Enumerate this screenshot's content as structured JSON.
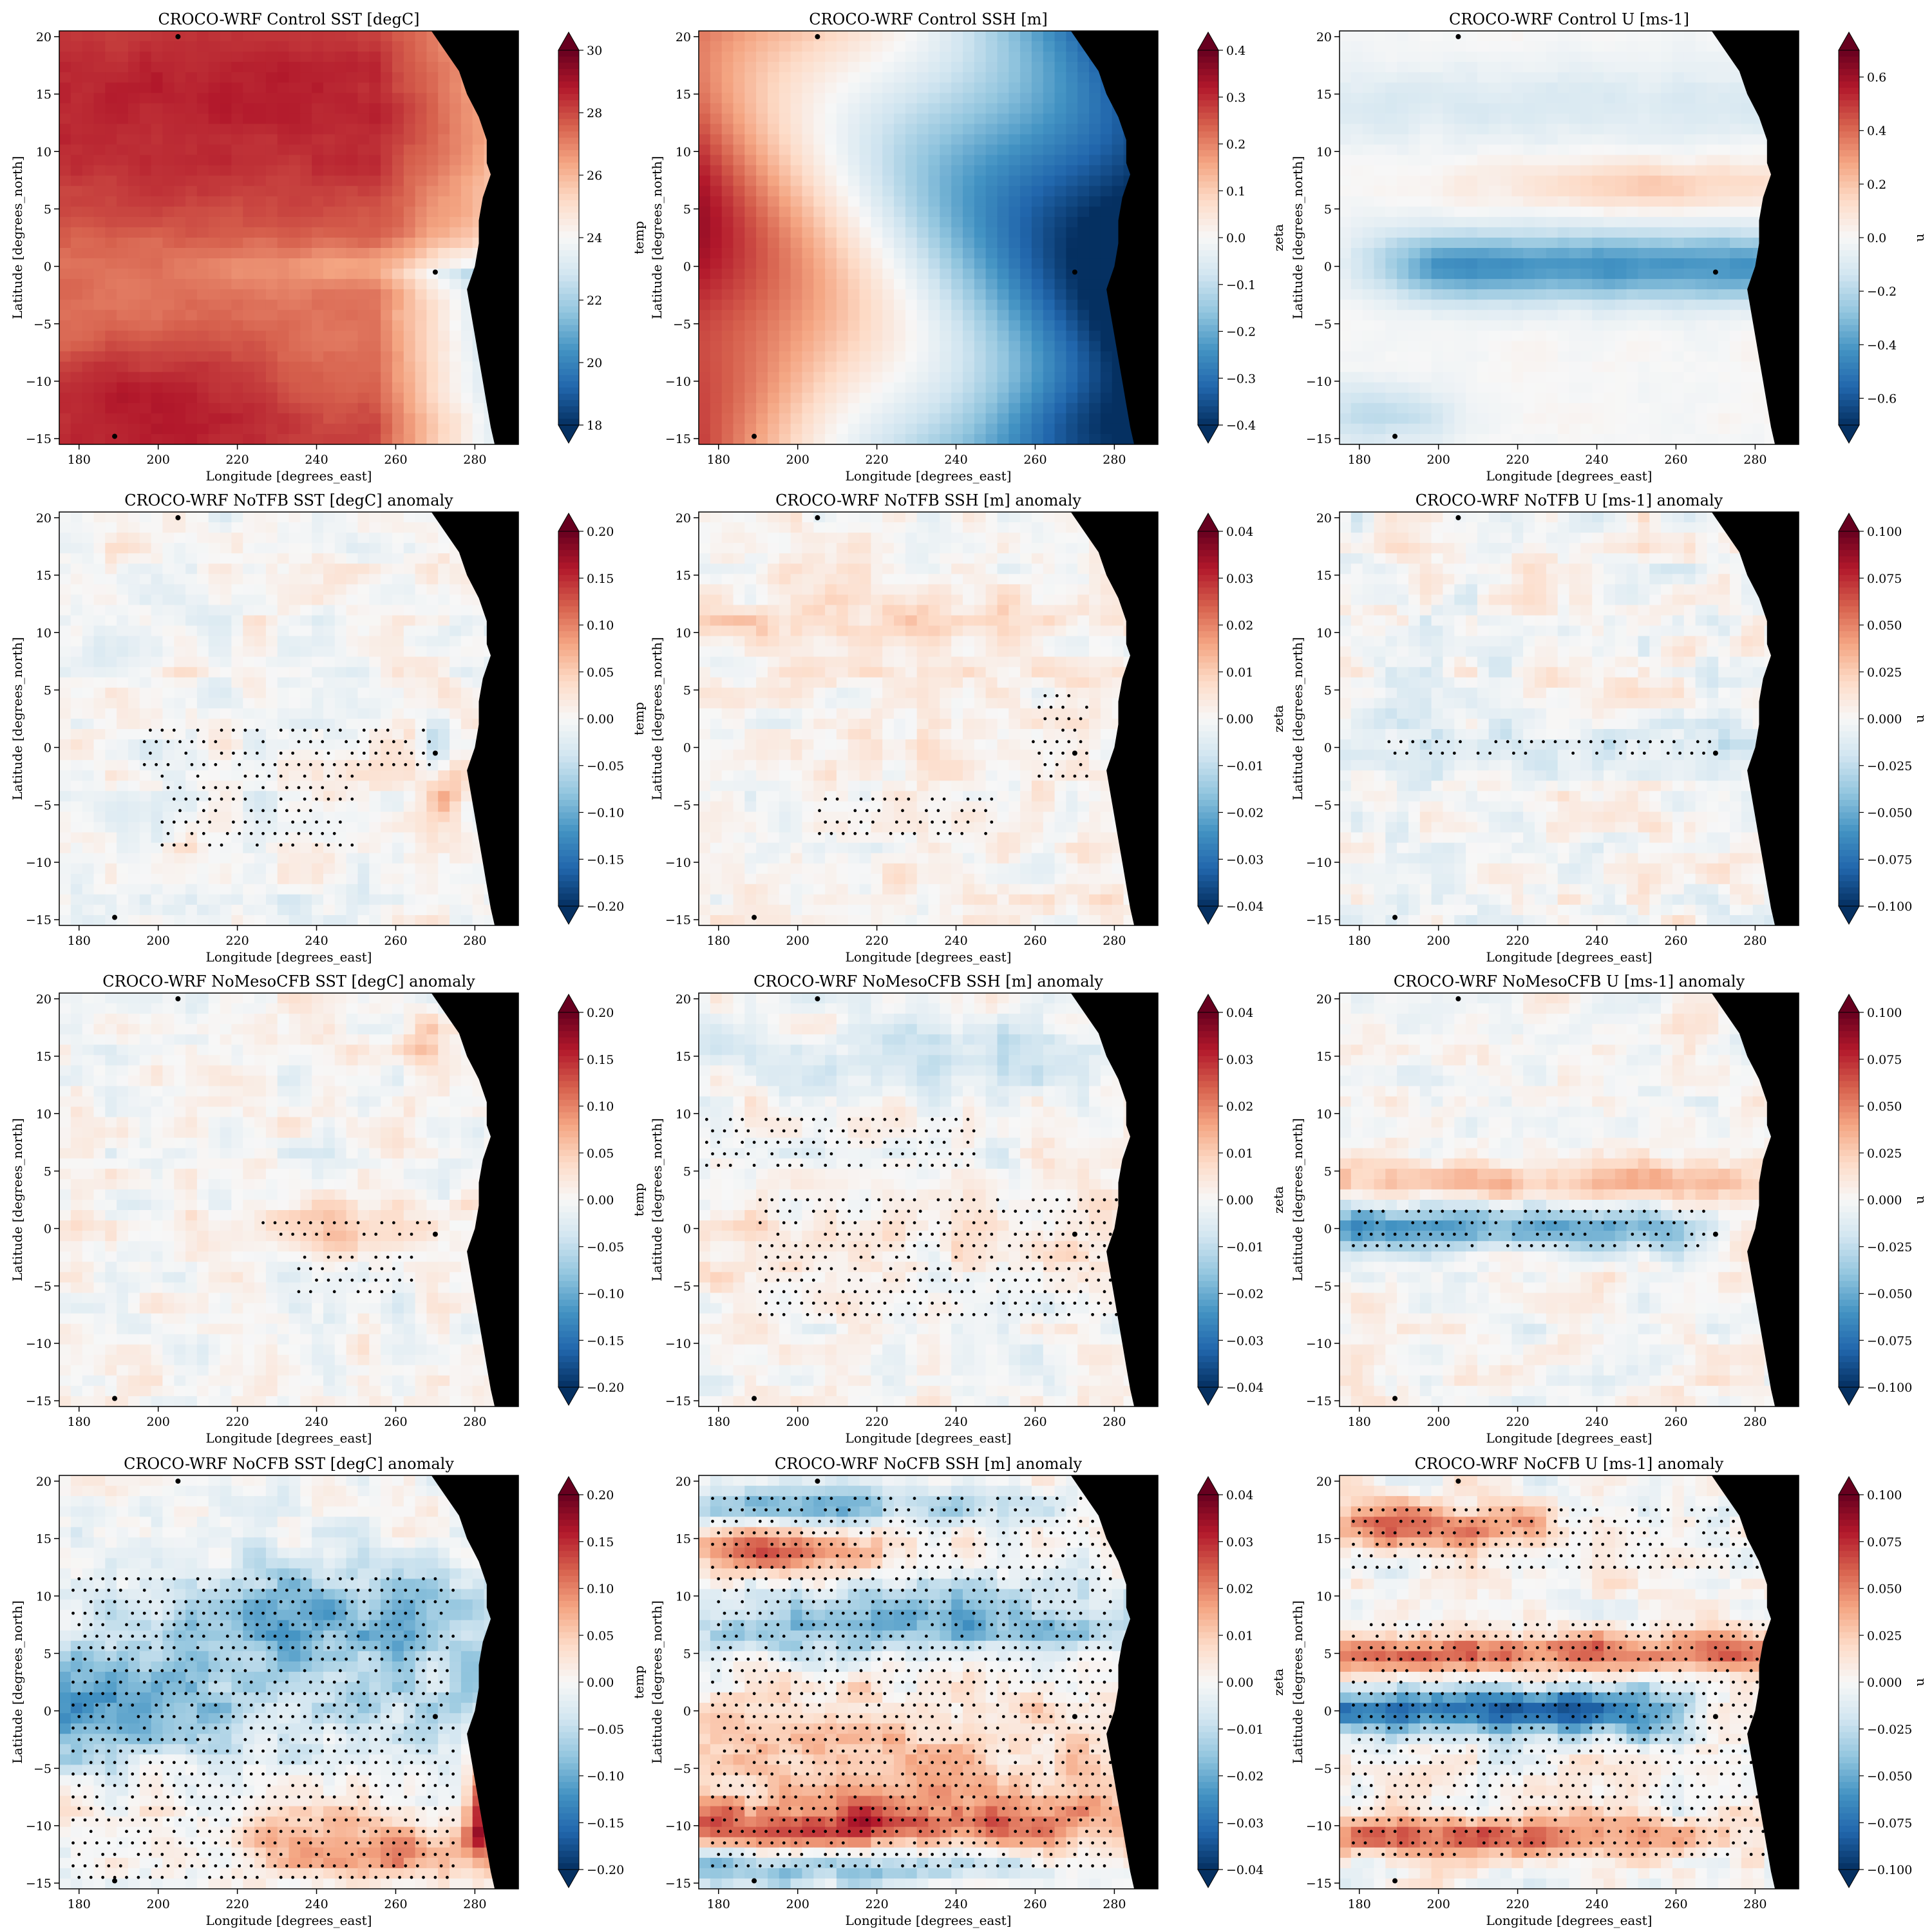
{
  "figure": {
    "grid": "4x3",
    "xlabel": "Longitude [degrees_east]",
    "ylabel": "Latitude [degrees_north]",
    "xticks": [
      180,
      200,
      220,
      240,
      260,
      280
    ],
    "yticks": [
      20,
      15,
      10,
      5,
      0,
      -5,
      -10,
      -15
    ],
    "xlim": [
      175,
      291
    ],
    "ylim": [
      -15.5,
      20.5
    ],
    "land_color": "#000000",
    "stipple_color": "#000000"
  },
  "chart_data": [
    {
      "type": "heatmap",
      "title": "CROCO-WRF Control SST [degC]",
      "cbar_label": "temp",
      "cmap": "RdBu_r",
      "vmin": 18,
      "vmax": 30,
      "cbar_ticks": [
        "30",
        "28",
        "26",
        "24",
        "22",
        "20",
        "18"
      ],
      "cbar_tick_values": [
        30,
        28,
        26,
        24,
        22,
        20,
        18
      ],
      "pattern": "sst"
    },
    {
      "type": "heatmap",
      "title": "CROCO-WRF Control SSH [m]",
      "cbar_label": "zeta",
      "cmap": "RdBu_r",
      "vmin": -0.4,
      "vmax": 0.4,
      "cbar_ticks": [
        "0.4",
        "0.3",
        "0.2",
        "0.1",
        "0.0",
        "−0.1",
        "−0.2",
        "−0.3",
        "−0.4"
      ],
      "cbar_tick_values": [
        0.4,
        0.3,
        0.2,
        0.1,
        0.0,
        -0.1,
        -0.2,
        -0.3,
        -0.4
      ],
      "pattern": "ssh"
    },
    {
      "type": "heatmap",
      "title": "CROCO-WRF Control U [ms-1]",
      "cbar_label": "u",
      "cmap": "RdBu_r",
      "vmin": -0.7,
      "vmax": 0.7,
      "cbar_ticks": [
        "0.6",
        "0.4",
        "0.2",
        "0.0",
        "−0.2",
        "−0.4",
        "−0.6"
      ],
      "cbar_tick_values": [
        0.6,
        0.4,
        0.2,
        0.0,
        -0.2,
        -0.4,
        -0.6
      ],
      "pattern": "u"
    },
    {
      "type": "heatmap",
      "title": "CROCO-WRF NoTFB SST [degC] anomaly",
      "cbar_label": "temp",
      "cmap": "RdBu_r",
      "vmin": -0.2,
      "vmax": 0.2,
      "cbar_ticks": [
        "0.20",
        "0.15",
        "0.10",
        "0.05",
        "0.00",
        "−0.05",
        "−0.10",
        "−0.15",
        "−0.20"
      ],
      "cbar_tick_values": [
        0.2,
        0.15,
        0.1,
        0.05,
        0.0,
        -0.05,
        -0.1,
        -0.15,
        -0.2
      ],
      "pattern": "a_sst_notfb"
    },
    {
      "type": "heatmap",
      "title": "CROCO-WRF NoTFB SSH [m] anomaly",
      "cbar_label": "zeta",
      "cmap": "RdBu_r",
      "vmin": -0.04,
      "vmax": 0.04,
      "cbar_ticks": [
        "0.04",
        "0.03",
        "0.02",
        "0.01",
        "0.00",
        "−0.01",
        "−0.02",
        "−0.03",
        "−0.04"
      ],
      "cbar_tick_values": [
        0.04,
        0.03,
        0.02,
        0.01,
        0.0,
        -0.01,
        -0.02,
        -0.03,
        -0.04
      ],
      "pattern": "a_ssh_notfb"
    },
    {
      "type": "heatmap",
      "title": "CROCO-WRF NoTFB U [ms-1] anomaly",
      "cbar_label": "u",
      "cmap": "RdBu_r",
      "vmin": -0.1,
      "vmax": 0.1,
      "cbar_ticks": [
        "0.100",
        "0.075",
        "0.050",
        "0.025",
        "0.000",
        "−0.025",
        "−0.050",
        "−0.075",
        "−0.100"
      ],
      "cbar_tick_values": [
        0.1,
        0.075,
        0.05,
        0.025,
        0.0,
        -0.025,
        -0.05,
        -0.075,
        -0.1
      ],
      "pattern": "a_u_notfb"
    },
    {
      "type": "heatmap",
      "title": "CROCO-WRF NoMesoCFB SST [degC] anomaly",
      "cbar_label": "temp",
      "cmap": "RdBu_r",
      "vmin": -0.2,
      "vmax": 0.2,
      "cbar_ticks": [
        "0.20",
        "0.15",
        "0.10",
        "0.05",
        "0.00",
        "−0.05",
        "−0.10",
        "−0.15",
        "−0.20"
      ],
      "cbar_tick_values": [
        0.2,
        0.15,
        0.1,
        0.05,
        0.0,
        -0.05,
        -0.1,
        -0.15,
        -0.2
      ],
      "pattern": "a_sst_meso"
    },
    {
      "type": "heatmap",
      "title": "CROCO-WRF NoMesoCFB SSH [m] anomaly",
      "cbar_label": "zeta",
      "cmap": "RdBu_r",
      "vmin": -0.04,
      "vmax": 0.04,
      "cbar_ticks": [
        "0.04",
        "0.03",
        "0.02",
        "0.01",
        "0.00",
        "−0.01",
        "−0.02",
        "−0.03",
        "−0.04"
      ],
      "cbar_tick_values": [
        0.04,
        0.03,
        0.02,
        0.01,
        0.0,
        -0.01,
        -0.02,
        -0.03,
        -0.04
      ],
      "pattern": "a_ssh_meso"
    },
    {
      "type": "heatmap",
      "title": "CROCO-WRF NoMesoCFB U [ms-1] anomaly",
      "cbar_label": "u",
      "cmap": "RdBu_r",
      "vmin": -0.1,
      "vmax": 0.1,
      "cbar_ticks": [
        "0.100",
        "0.075",
        "0.050",
        "0.025",
        "0.000",
        "−0.025",
        "−0.050",
        "−0.075",
        "−0.100"
      ],
      "cbar_tick_values": [
        0.1,
        0.075,
        0.05,
        0.025,
        0.0,
        -0.025,
        -0.05,
        -0.075,
        -0.1
      ],
      "pattern": "a_u_meso"
    },
    {
      "type": "heatmap",
      "title": "CROCO-WRF NoCFB SST [degC] anomaly",
      "cbar_label": "temp",
      "cmap": "RdBu_r",
      "vmin": -0.2,
      "vmax": 0.2,
      "cbar_ticks": [
        "0.20",
        "0.15",
        "0.10",
        "0.05",
        "0.00",
        "−0.05",
        "−0.10",
        "−0.15",
        "−0.20"
      ],
      "cbar_tick_values": [
        0.2,
        0.15,
        0.1,
        0.05,
        0.0,
        -0.05,
        -0.1,
        -0.15,
        -0.2
      ],
      "pattern": "a_sst_nocfb"
    },
    {
      "type": "heatmap",
      "title": "CROCO-WRF NoCFB SSH [m] anomaly",
      "cbar_label": "zeta",
      "cmap": "RdBu_r",
      "vmin": -0.04,
      "vmax": 0.04,
      "cbar_ticks": [
        "0.04",
        "0.03",
        "0.02",
        "0.01",
        "0.00",
        "−0.01",
        "−0.02",
        "−0.03",
        "−0.04"
      ],
      "cbar_tick_values": [
        0.04,
        0.03,
        0.02,
        0.01,
        0.0,
        -0.01,
        -0.02,
        -0.03,
        -0.04
      ],
      "pattern": "a_ssh_nocfb"
    },
    {
      "type": "heatmap",
      "title": "CROCO-WRF NoCFB U [ms-1] anomaly",
      "cbar_label": "u",
      "cmap": "RdBu_r",
      "vmin": -0.1,
      "vmax": 0.1,
      "cbar_ticks": [
        "0.100",
        "0.075",
        "0.050",
        "0.025",
        "0.000",
        "−0.025",
        "−0.050",
        "−0.075",
        "−0.100"
      ],
      "cbar_tick_values": [
        0.1,
        0.075,
        0.05,
        0.025,
        0.0,
        -0.025,
        -0.05,
        -0.075,
        -0.1
      ],
      "pattern": "a_u_nocfb"
    }
  ]
}
